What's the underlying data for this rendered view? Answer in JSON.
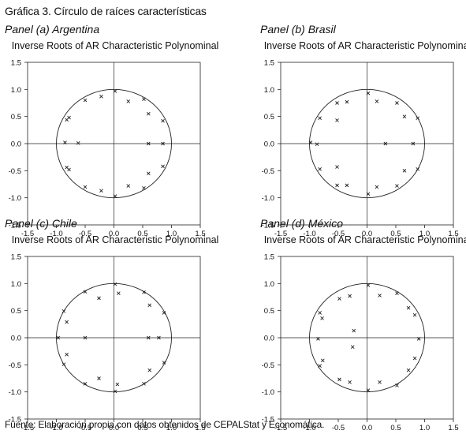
{
  "figure": {
    "title": "Gráfica 3. Círculo de raíces características",
    "source": "Fuente: Elaboración propia con datos obtenidos de CEPALStat y Economática."
  },
  "chart_data": [
    {
      "panel": "Panel (a) Argentina",
      "type": "scatter",
      "title": "Inverse Roots of AR Characteristic Polynominal",
      "xlim": [
        -1.5,
        1.5
      ],
      "ylim": [
        -1.5,
        1.5
      ],
      "xticks": [
        "-1.5",
        "-1.0",
        "-0.5",
        "0.0",
        "0.5",
        "1.0",
        "1.5"
      ],
      "yticks": [
        "1.5",
        "1.0",
        "0.5",
        "0.0",
        "-0.5",
        "-1.0",
        "-1.5"
      ],
      "unit_circle": true,
      "points": [
        [
          0.02,
          0.97
        ],
        [
          -0.22,
          0.87
        ],
        [
          -0.5,
          0.8
        ],
        [
          0.25,
          0.78
        ],
        [
          0.52,
          0.82
        ],
        [
          0.6,
          0.55
        ],
        [
          -0.78,
          0.48
        ],
        [
          -0.82,
          0.44
        ],
        [
          0.85,
          0.42
        ],
        [
          -0.85,
          0.02
        ],
        [
          -0.62,
          0.01
        ],
        [
          0.85,
          0.0
        ],
        [
          0.6,
          0.0
        ],
        [
          -0.82,
          -0.44
        ],
        [
          -0.78,
          -0.48
        ],
        [
          0.85,
          -0.42
        ],
        [
          0.6,
          -0.55
        ],
        [
          -0.5,
          -0.8
        ],
        [
          0.25,
          -0.78
        ],
        [
          0.52,
          -0.82
        ],
        [
          -0.22,
          -0.87
        ],
        [
          0.02,
          -0.97
        ]
      ]
    },
    {
      "panel": "Panel (b) Brasil",
      "type": "scatter",
      "title": "Inverse Roots of AR Characteristic Polynominal",
      "xlim": [
        -1.5,
        1.5
      ],
      "ylim": [
        -1.5,
        1.5
      ],
      "xticks": [
        "-1.5",
        "-1.0",
        "-0.5",
        "0.0",
        "0.5",
        "1.0",
        "1.5"
      ],
      "yticks": [
        "1.5",
        "1.0",
        "0.5",
        "0.0",
        "-0.5",
        "-1.0",
        "-1.5"
      ],
      "unit_circle": true,
      "points": [
        [
          0.02,
          0.93
        ],
        [
          -0.35,
          0.77
        ],
        [
          -0.52,
          0.75
        ],
        [
          0.17,
          0.78
        ],
        [
          0.52,
          0.75
        ],
        [
          -0.52,
          0.43
        ],
        [
          -0.82,
          0.47
        ],
        [
          0.88,
          0.47
        ],
        [
          0.65,
          0.5
        ],
        [
          -0.98,
          0.02
        ],
        [
          -0.87,
          -0.01
        ],
        [
          0.32,
          0.0
        ],
        [
          0.8,
          0.0
        ],
        [
          -0.52,
          -0.43
        ],
        [
          -0.82,
          -0.47
        ],
        [
          0.88,
          -0.47
        ],
        [
          0.65,
          -0.5
        ],
        [
          -0.35,
          -0.77
        ],
        [
          -0.52,
          -0.77
        ],
        [
          0.17,
          -0.8
        ],
        [
          0.52,
          -0.78
        ],
        [
          0.02,
          -0.93
        ]
      ]
    },
    {
      "panel": "Panel (c) Chile",
      "type": "scatter",
      "title": "Inverse Roots of AR Characteristic Polynominal",
      "xlim": [
        -1.5,
        1.5
      ],
      "ylim": [
        -1.5,
        1.5
      ],
      "xticks": [
        "-1.5",
        "-1.0",
        "-0.5",
        "0.0",
        "0.5",
        "1.0",
        "1.5"
      ],
      "yticks": [
        "1.5",
        "1.0",
        "0.5",
        "0.0",
        "-0.5",
        "-1.0",
        "-1.5"
      ],
      "unit_circle": true,
      "points": [
        [
          0.02,
          0.99
        ],
        [
          0.08,
          0.82
        ],
        [
          -0.5,
          0.85
        ],
        [
          -0.26,
          0.73
        ],
        [
          0.52,
          0.84
        ],
        [
          0.62,
          0.6
        ],
        [
          -0.87,
          0.49
        ],
        [
          -0.82,
          0.29
        ],
        [
          0.87,
          0.46
        ],
        [
          -0.97,
          0.0
        ],
        [
          -0.5,
          0.0
        ],
        [
          0.6,
          0.0
        ],
        [
          0.78,
          0.0
        ],
        [
          -0.87,
          -0.49
        ],
        [
          -0.82,
          -0.31
        ],
        [
          0.87,
          -0.46
        ],
        [
          0.62,
          -0.6
        ],
        [
          -0.5,
          -0.85
        ],
        [
          -0.26,
          -0.75
        ],
        [
          0.52,
          -0.85
        ],
        [
          0.06,
          -0.86
        ],
        [
          0.02,
          -0.99
        ]
      ]
    },
    {
      "panel": "Panel (d) México",
      "type": "scatter",
      "title": "Inverse Roots of AR Characteristic Polynominal",
      "xlim": [
        -1.5,
        1.5
      ],
      "ylim": [
        -1.5,
        1.5
      ],
      "xticks": [
        "-1.5",
        "-1.0",
        "-0.5",
        "0.0",
        "0.5",
        "1.0",
        "1.5"
      ],
      "yticks": [
        "1.5",
        "1.0",
        "0.5",
        "0.0",
        "-0.5",
        "-1.0",
        "-1.5"
      ],
      "unit_circle": true,
      "points": [
        [
          0.02,
          0.97
        ],
        [
          -0.48,
          0.72
        ],
        [
          -0.3,
          0.77
        ],
        [
          0.22,
          0.78
        ],
        [
          0.52,
          0.82
        ],
        [
          0.72,
          0.55
        ],
        [
          -0.82,
          0.46
        ],
        [
          -0.78,
          0.36
        ],
        [
          0.83,
          0.42
        ],
        [
          -0.23,
          0.13
        ],
        [
          -0.85,
          -0.02
        ],
        [
          0.9,
          -0.02
        ],
        [
          -0.25,
          -0.17
        ],
        [
          -0.82,
          -0.52
        ],
        [
          -0.77,
          -0.42
        ],
        [
          0.83,
          -0.38
        ],
        [
          0.72,
          -0.6
        ],
        [
          -0.48,
          -0.77
        ],
        [
          -0.3,
          -0.82
        ],
        [
          0.22,
          -0.82
        ],
        [
          0.52,
          -0.88
        ],
        [
          0.02,
          -0.97
        ]
      ]
    }
  ]
}
